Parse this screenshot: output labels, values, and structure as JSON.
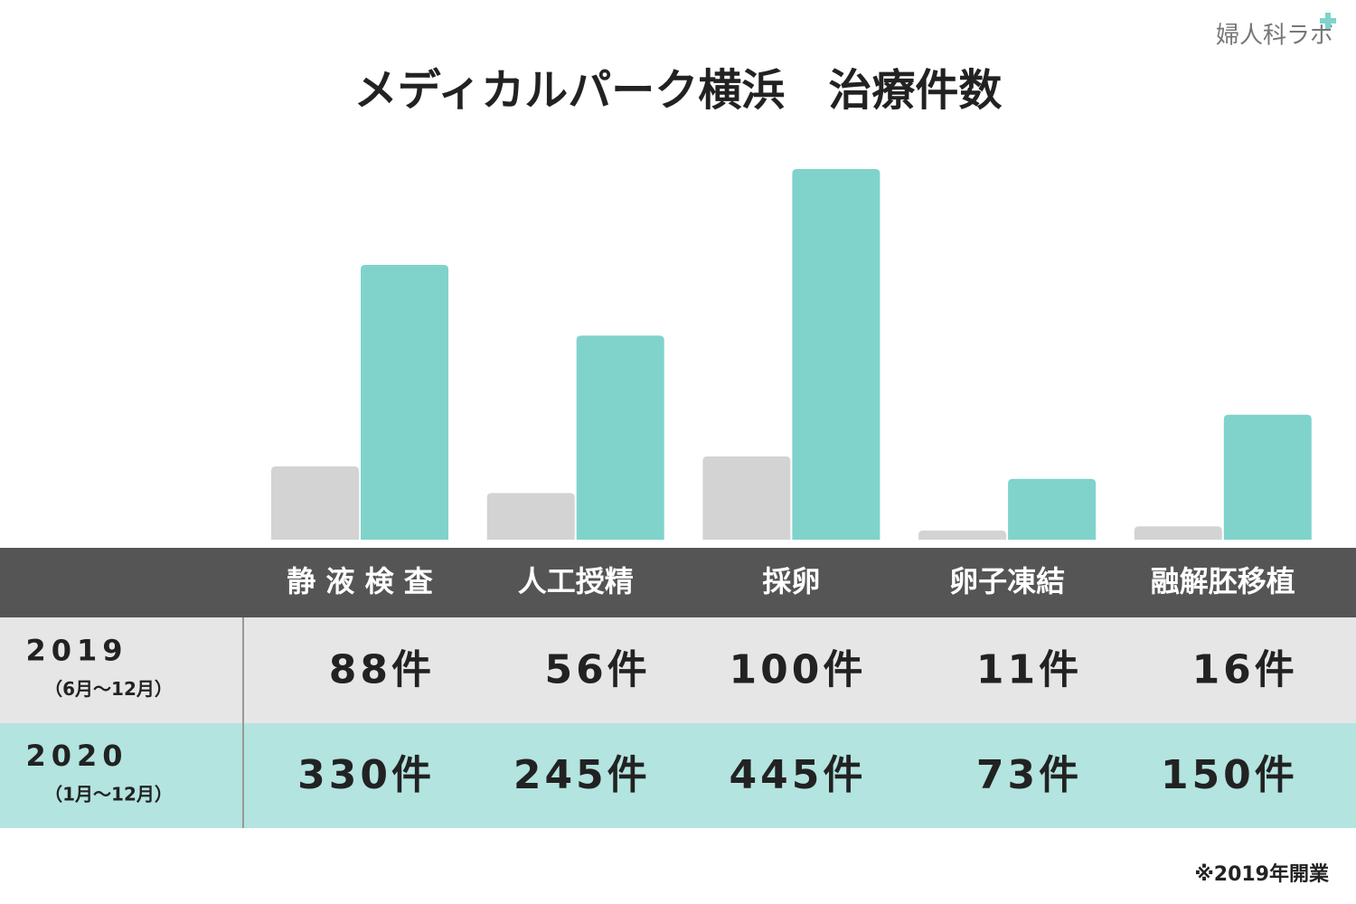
{
  "logo": "婦人科ラボ",
  "footnote": "※2019年開業",
  "chart_data": {
    "type": "bar",
    "title": "メディカルパーク横浜　治療件数",
    "categories": [
      "静 液 検 査",
      "人工授精",
      "採卵",
      "卵子凍結",
      "融解胚移植"
    ],
    "series": [
      {
        "name": "2019",
        "period": "（6月～12月）",
        "color": "#d3d3d3",
        "row_color": "#e6e6e6",
        "values": [
          88,
          56,
          100,
          11,
          16
        ],
        "value_labels": [
          "88件",
          "56件",
          "100件",
          "11件",
          "16件"
        ]
      },
      {
        "name": "2020",
        "period": "（1月～12月）",
        "color": "#7fd3cb",
        "row_color": "#b3e4e0",
        "values": [
          330,
          245,
          445,
          73,
          150
        ],
        "value_labels": [
          "330件",
          "245件",
          "445件",
          "73件",
          "150件"
        ]
      }
    ]
  }
}
